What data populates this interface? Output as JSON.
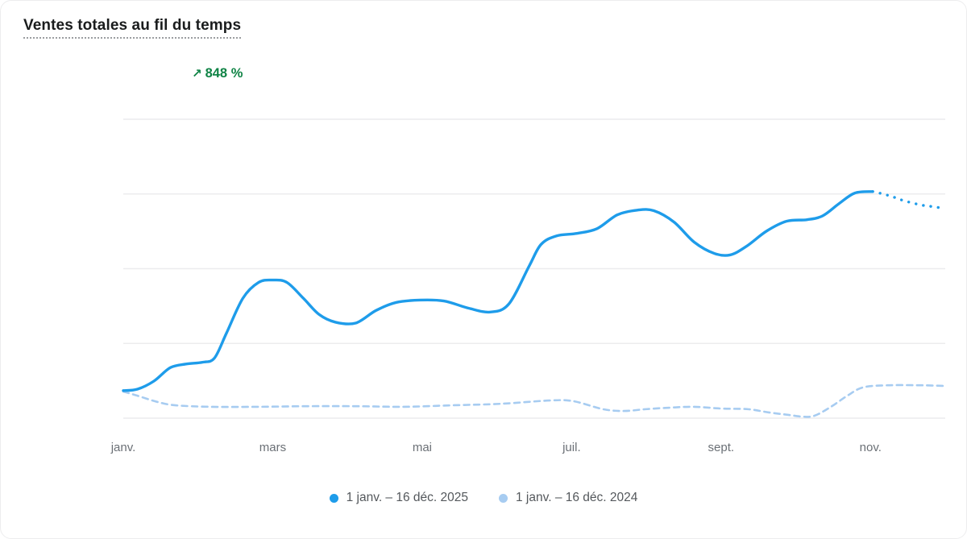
{
  "header": {
    "title": "Ventes totales au fil du temps",
    "change_arrow": "↗",
    "change_value": "848 %",
    "change_color": "#0f8345"
  },
  "legend": {
    "position": "bottom-center",
    "items": [
      {
        "label": "1 janv. – 16 déc. 2025",
        "color": "#1e9cea"
      },
      {
        "label": "1 janv. – 16 déc. 2024",
        "color": "#a7ccf1"
      }
    ]
  },
  "chart_data": {
    "type": "line",
    "title": "Ventes totales au fil du temps",
    "change_label": "↗ 848 %",
    "x_tick_labels": [
      "janv.",
      "mars",
      "mai",
      "juil.",
      "sept.",
      "nov."
    ],
    "x_tick_months": [
      0,
      2,
      4,
      6,
      8,
      10
    ],
    "xlim": [
      0,
      11
    ],
    "ylim": [
      0,
      100
    ],
    "y_axis_labels": false,
    "grid": "horizontal only",
    "grid_values": [
      0,
      25,
      50,
      75,
      100
    ],
    "grid_color": "#ececee",
    "legend_position": "bottom-center",
    "series": [
      {
        "name": "1 janv. – 16 déc. 2025",
        "color": "#1e9cea",
        "line_style": "solid",
        "points": [
          [
            0.0,
            9.2
          ],
          [
            0.19,
            9.7
          ],
          [
            0.41,
            12.4
          ],
          [
            0.63,
            16.9
          ],
          [
            0.84,
            18.1
          ],
          [
            1.06,
            18.7
          ],
          [
            1.22,
            20.1
          ],
          [
            1.38,
            28.4
          ],
          [
            1.6,
            40.1
          ],
          [
            1.81,
            45.4
          ],
          [
            2.0,
            46.2
          ],
          [
            2.19,
            45.4
          ],
          [
            2.41,
            40.1
          ],
          [
            2.62,
            34.7
          ],
          [
            2.84,
            32.1
          ],
          [
            3.11,
            31.8
          ],
          [
            3.38,
            36.0
          ],
          [
            3.65,
            38.7
          ],
          [
            3.97,
            39.5
          ],
          [
            4.29,
            39.2
          ],
          [
            4.62,
            36.8
          ],
          [
            4.91,
            35.5
          ],
          [
            5.16,
            38.2
          ],
          [
            5.43,
            50.8
          ],
          [
            5.59,
            58.1
          ],
          [
            5.8,
            61.0
          ],
          [
            6.07,
            61.8
          ],
          [
            6.34,
            63.4
          ],
          [
            6.61,
            68.0
          ],
          [
            6.88,
            69.6
          ],
          [
            7.1,
            69.4
          ],
          [
            7.37,
            65.6
          ],
          [
            7.64,
            58.9
          ],
          [
            7.91,
            55.1
          ],
          [
            8.12,
            54.6
          ],
          [
            8.34,
            57.5
          ],
          [
            8.61,
            62.6
          ],
          [
            8.88,
            65.9
          ],
          [
            9.15,
            66.4
          ],
          [
            9.36,
            67.7
          ],
          [
            9.58,
            71.8
          ],
          [
            9.79,
            75.3
          ],
          [
            10.03,
            75.8
          ]
        ],
        "projection_style": "dotted",
        "projection_points": [
          [
            10.12,
            75.3
          ],
          [
            10.28,
            74.2
          ],
          [
            10.44,
            72.8
          ],
          [
            10.66,
            71.4
          ],
          [
            10.82,
            70.8
          ],
          [
            10.98,
            70.2
          ]
        ]
      },
      {
        "name": "1 janv. – 16 déc. 2024",
        "color": "#a7ccf1",
        "line_style": "dashed",
        "points": [
          [
            0.0,
            8.9
          ],
          [
            0.19,
            7.5
          ],
          [
            0.46,
            5.4
          ],
          [
            0.7,
            4.3
          ],
          [
            1.17,
            3.8
          ],
          [
            1.81,
            3.8
          ],
          [
            2.46,
            4.0
          ],
          [
            3.11,
            4.0
          ],
          [
            3.75,
            3.8
          ],
          [
            4.4,
            4.3
          ],
          [
            5.05,
            4.8
          ],
          [
            5.7,
            5.9
          ],
          [
            6.02,
            5.7
          ],
          [
            6.42,
            3.0
          ],
          [
            6.7,
            2.4
          ],
          [
            6.99,
            3.0
          ],
          [
            7.31,
            3.5
          ],
          [
            7.64,
            3.8
          ],
          [
            8.01,
            3.2
          ],
          [
            8.36,
            3.0
          ],
          [
            8.64,
            1.9
          ],
          [
            8.9,
            1.1
          ],
          [
            9.09,
            0.5
          ],
          [
            9.25,
            0.8
          ],
          [
            9.47,
            3.8
          ],
          [
            9.69,
            7.5
          ],
          [
            9.9,
            10.3
          ],
          [
            10.23,
            11.0
          ],
          [
            10.66,
            11.0
          ],
          [
            10.98,
            10.8
          ]
        ]
      }
    ]
  }
}
